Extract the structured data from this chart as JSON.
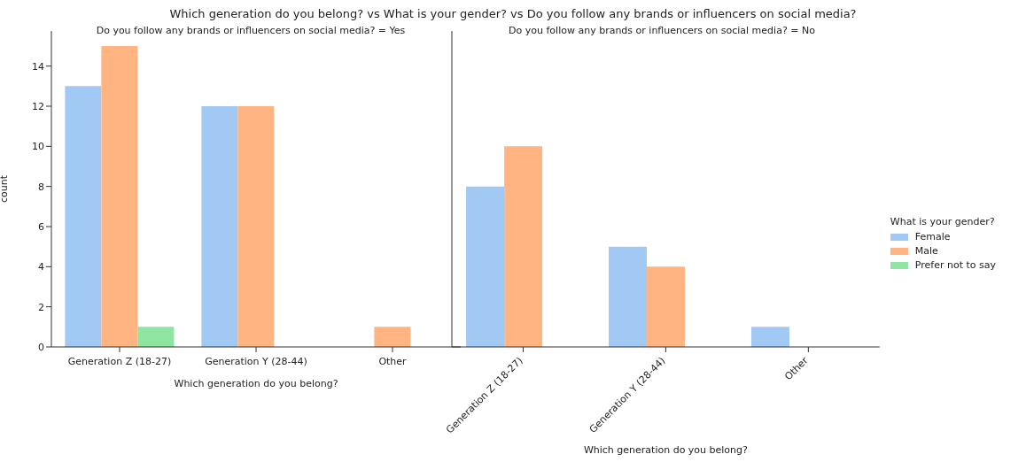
{
  "chart_data": [
    {
      "type": "bar",
      "title": "Which generation do you belong? vs What is your gender? vs Do you follow any brands or influencers on social media?",
      "subtitle": "Do you follow any brands or influencers on social media? = Yes",
      "xlabel": "Which generation do you belong?",
      "ylabel": "count",
      "categories": [
        "Generation Z (18-27)",
        "Generation Y (28-44)",
        "Other"
      ],
      "series": [
        {
          "color": "#a1c9f4",
          "values": [
            13,
            12,
            0
          ]
        },
        {
          "color": "#ffb482",
          "values": [
            15,
            12,
            1
          ]
        },
        {
          "color": "#8de5a1",
          "values": [
            1,
            0,
            0
          ]
        }
      ],
      "ylim": [
        0,
        15.75
      ],
      "yticks": [
        0,
        2,
        4,
        6,
        8,
        10,
        12,
        14
      ],
      "grid": false
    },
    {
      "type": "bar",
      "subtitle": "Do you follow any brands or influencers on social media? = No",
      "xlabel": "Which generation do you belong?",
      "legend_title": "What is your gender?",
      "categories": [
        "Generation Z (18-27)",
        "Generation Y (28-44)",
        "Other"
      ],
      "series": [
        {
          "name": "Female",
          "color": "#a1c9f4",
          "values": [
            8,
            5,
            1
          ]
        },
        {
          "name": "Male",
          "color": "#ffb482",
          "values": [
            10,
            4,
            0
          ]
        },
        {
          "name": "Prefer not to say",
          "color": "#8de5a1",
          "values": [
            0,
            0,
            0
          ]
        }
      ],
      "ylim": [
        0,
        15.75
      ],
      "yticks": [
        0,
        2,
        4,
        6,
        8,
        10,
        12,
        14
      ],
      "tick_labels": "x",
      "grid": false,
      "legend": "right"
    }
  ]
}
